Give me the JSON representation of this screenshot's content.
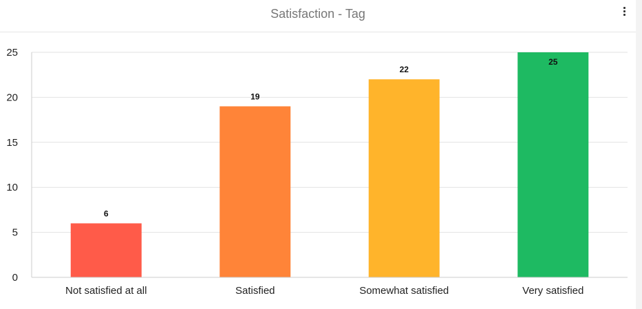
{
  "header": {
    "title": "Satisfaction - Tag",
    "menu_icon": "more-vertical-icon"
  },
  "chart_data": {
    "type": "bar",
    "title": "Satisfaction - Tag",
    "xlabel": "",
    "ylabel": "",
    "categories": [
      "Not satisfied at all",
      "Satisfied",
      "Somewhat satisfied",
      "Very satisfied"
    ],
    "values": [
      6,
      19,
      22,
      25
    ],
    "colors": [
      "#ff5b49",
      "#ff8438",
      "#ffb42b",
      "#1eba62"
    ],
    "ylim": [
      0,
      25
    ],
    "yticks": [
      0,
      5,
      10,
      15,
      20,
      25
    ],
    "grid": true,
    "legend": "none",
    "data_labels": true
  }
}
